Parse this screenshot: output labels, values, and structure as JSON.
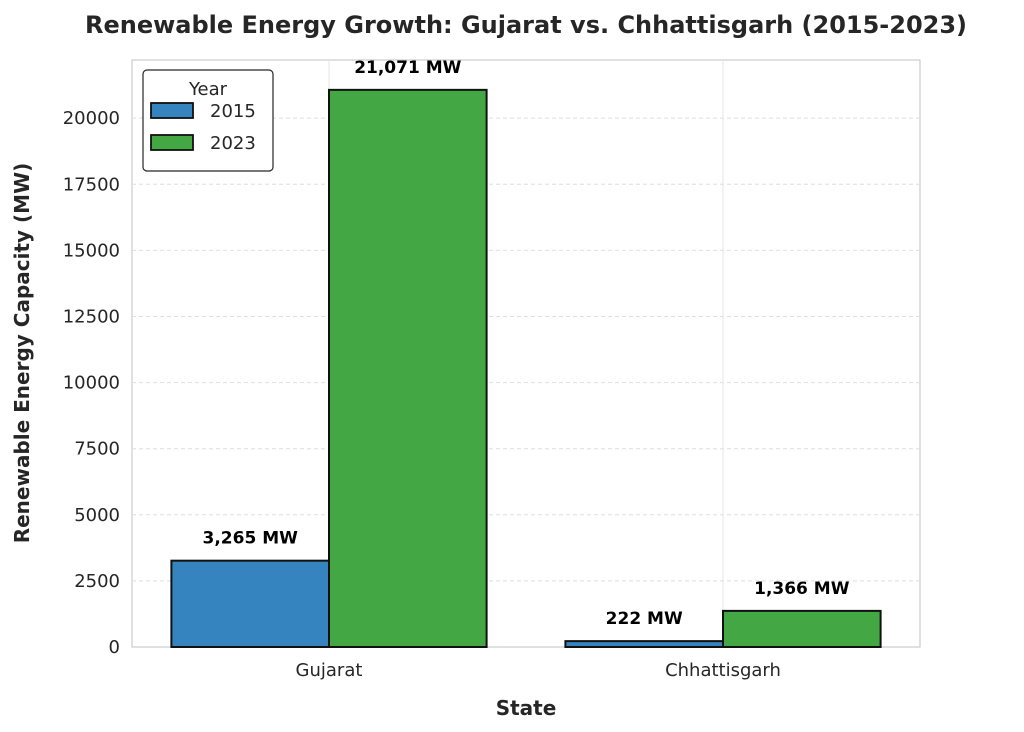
{
  "chart_data": {
    "type": "bar",
    "title": "Renewable Energy Growth: Gujarat vs. Chhattisgarh (2015-2023)",
    "xlabel": "State",
    "ylabel": "Renewable Energy Capacity (MW)",
    "categories": [
      "Gujarat",
      "Chhattisgarh"
    ],
    "series": [
      {
        "name": "2015",
        "color": "#3584bf",
        "values": [
          3265,
          222
        ],
        "labels": [
          "3,265 MW",
          "222 MW"
        ]
      },
      {
        "name": "2023",
        "color": "#43a843",
        "values": [
          21071,
          1366
        ],
        "labels": [
          "21,071 MW",
          "1,366 MW"
        ]
      }
    ],
    "ylim": [
      0,
      22200
    ],
    "yticks": [
      0,
      2500,
      5000,
      7500,
      10000,
      12500,
      15000,
      17500,
      20000
    ],
    "ytick_labels": [
      "0",
      "2500",
      "5000",
      "7500",
      "10000",
      "12500",
      "15000",
      "17500",
      "20000"
    ],
    "grid": true,
    "legend": {
      "title": "Year",
      "placement": "top-left",
      "entries": [
        "2015",
        "2023"
      ]
    }
  }
}
